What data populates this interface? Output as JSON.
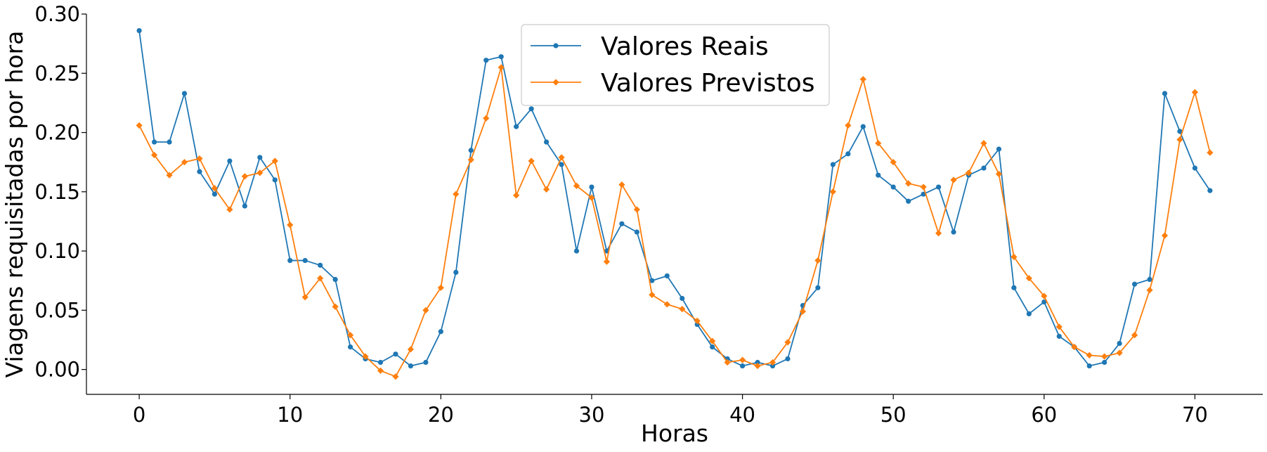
{
  "chart_data": {
    "type": "line",
    "xlabel": "Horas",
    "ylabel": "Viagens requisitadas por hora",
    "xlim": [
      -3.5,
      74.5
    ],
    "ylim": [
      -0.021,
      0.3
    ],
    "xticks": [
      0,
      10,
      20,
      30,
      40,
      50,
      60,
      70
    ],
    "yticks": [
      0.0,
      0.05,
      0.1,
      0.15,
      0.2,
      0.25,
      0.3
    ],
    "ytick_labels": [
      "0.00",
      "0.05",
      "0.10",
      "0.15",
      "0.20",
      "0.25",
      "0.30"
    ],
    "grid": false,
    "legend_position": "top-center",
    "x": [
      0,
      1,
      2,
      3,
      4,
      5,
      6,
      7,
      8,
      9,
      10,
      11,
      12,
      13,
      14,
      15,
      16,
      17,
      18,
      19,
      20,
      21,
      22,
      23,
      24,
      25,
      26,
      27,
      28,
      29,
      30,
      31,
      32,
      33,
      34,
      35,
      36,
      37,
      38,
      39,
      40,
      41,
      42,
      43,
      44,
      45,
      46,
      47,
      48,
      49,
      50,
      51,
      52,
      53,
      54,
      55,
      56,
      57,
      58,
      59,
      60,
      61,
      62,
      63,
      64,
      65,
      66,
      67,
      68,
      69,
      70,
      71
    ],
    "series": [
      {
        "name": "Valores Reais",
        "color": "#1f77b4",
        "marker": "circle",
        "values": [
          0.286,
          0.192,
          0.192,
          0.233,
          0.167,
          0.148,
          0.176,
          0.138,
          0.179,
          0.16,
          0.092,
          0.092,
          0.088,
          0.076,
          0.019,
          0.009,
          0.006,
          0.013,
          0.003,
          0.006,
          0.032,
          0.082,
          0.185,
          0.261,
          0.264,
          0.205,
          0.22,
          0.192,
          0.173,
          0.1,
          0.154,
          0.1,
          0.123,
          0.116,
          0.075,
          0.079,
          0.06,
          0.038,
          0.019,
          0.009,
          0.003,
          0.006,
          0.003,
          0.009,
          0.054,
          0.069,
          0.173,
          0.182,
          0.205,
          0.164,
          0.154,
          0.142,
          0.148,
          0.154,
          0.116,
          0.164,
          0.17,
          0.186,
          0.069,
          0.047,
          0.057,
          0.028,
          0.019,
          0.003,
          0.006,
          0.022,
          0.072,
          0.076,
          0.233,
          0.201,
          0.17,
          0.151
        ]
      },
      {
        "name": "Valores Previstos",
        "color": "#ff7f0e",
        "marker": "diamond",
        "values": [
          0.206,
          0.181,
          0.164,
          0.175,
          0.178,
          0.153,
          0.135,
          0.163,
          0.166,
          0.176,
          0.122,
          0.061,
          0.077,
          0.053,
          0.029,
          0.011,
          -0.001,
          -0.006,
          0.017,
          0.05,
          0.069,
          0.148,
          0.177,
          0.212,
          0.255,
          0.147,
          0.176,
          0.152,
          0.179,
          0.155,
          0.145,
          0.091,
          0.156,
          0.135,
          0.063,
          0.055,
          0.051,
          0.041,
          0.024,
          0.006,
          0.008,
          0.003,
          0.006,
          0.023,
          0.049,
          0.092,
          0.15,
          0.206,
          0.245,
          0.191,
          0.175,
          0.157,
          0.154,
          0.115,
          0.16,
          0.166,
          0.191,
          0.165,
          0.095,
          0.077,
          0.062,
          0.036,
          0.019,
          0.012,
          0.011,
          0.014,
          0.029,
          0.067,
          0.113,
          0.194,
          0.234,
          0.183
        ]
      }
    ]
  }
}
